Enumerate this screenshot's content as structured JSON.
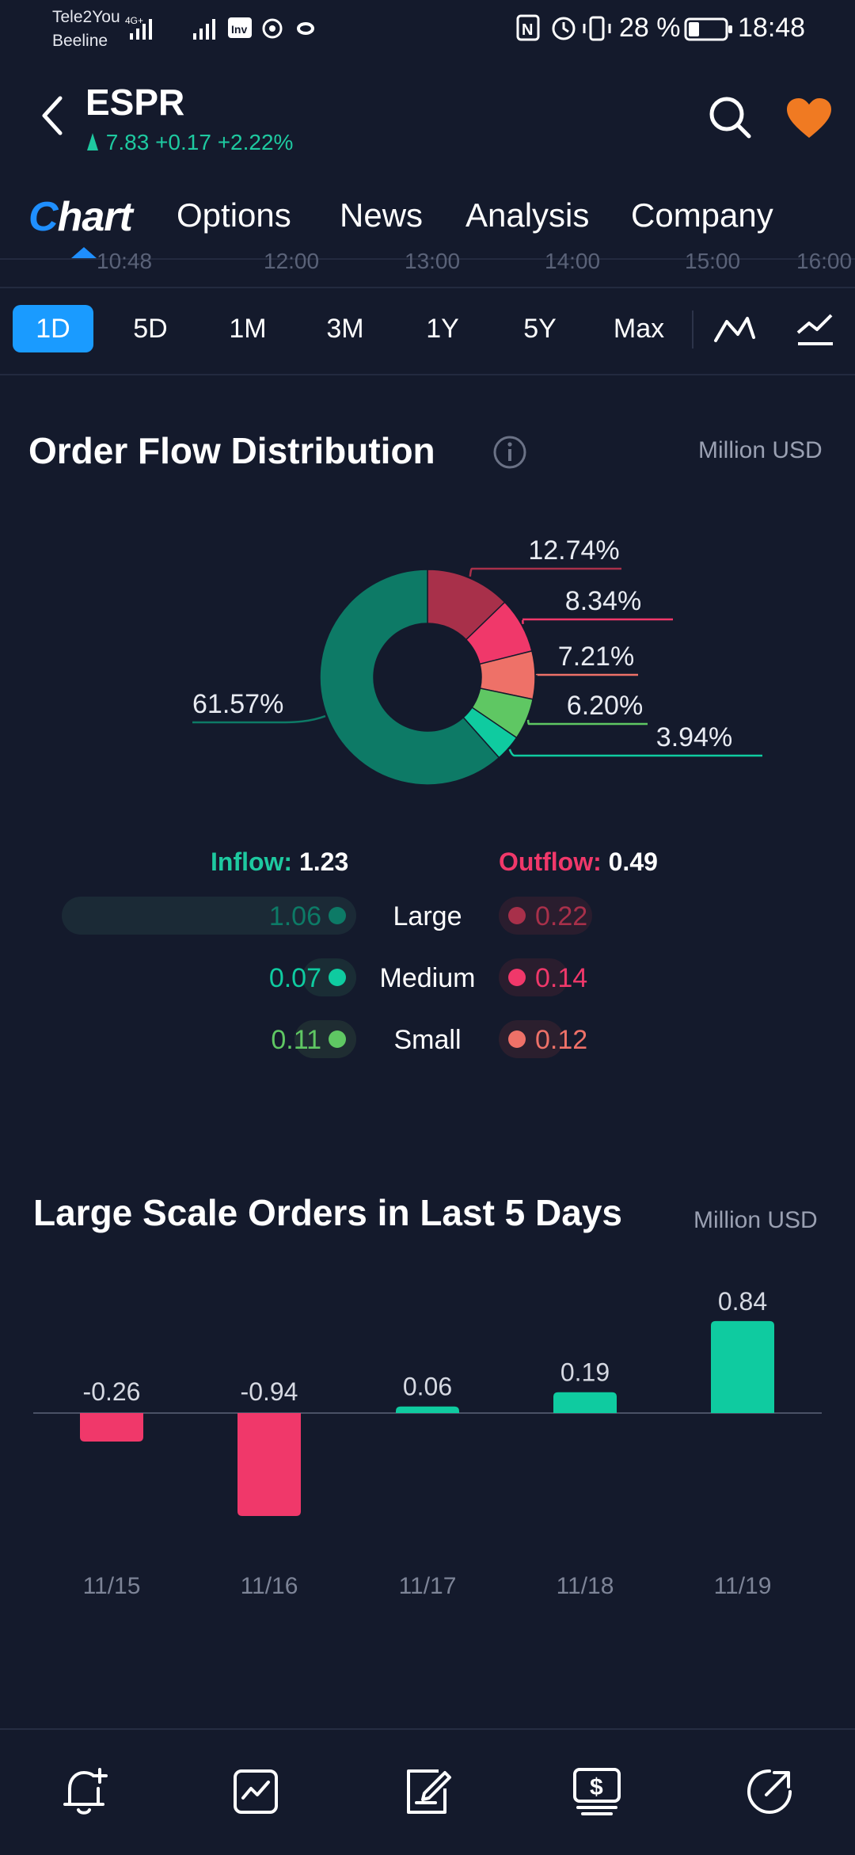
{
  "status_bar": {
    "carrier1": "Tele2You",
    "carrier2": "Beeline",
    "battery": "28 %",
    "time": "18:48"
  },
  "header": {
    "ticker": "ESPR",
    "price": "7.83",
    "change": "+0.17",
    "change_pct": "+2.22%"
  },
  "tabs": {
    "chart_c": "C",
    "chart_rest": "hart",
    "options": "Options",
    "news": "News",
    "analysis": "Analysis",
    "company": "Company"
  },
  "time_axis": [
    "10:48",
    "12:00",
    "13:00",
    "14:00",
    "15:00",
    "16:00"
  ],
  "periods": [
    "1D",
    "5D",
    "1M",
    "3M",
    "1Y",
    "5Y",
    "Max"
  ],
  "order_flow": {
    "title": "Order Flow Distribution",
    "unit": "Million USD",
    "inflow_label": "Inflow:",
    "inflow_value": "1.23",
    "outflow_label": "Outflow:",
    "outflow_value": "0.49",
    "slice_labels": [
      "61.57%",
      "12.74%",
      "8.34%",
      "7.21%",
      "6.20%",
      "3.94%"
    ],
    "rows": [
      {
        "size": "Large",
        "in": "1.06",
        "out": "0.22"
      },
      {
        "size": "Medium",
        "in": "0.07",
        "out": "0.14"
      },
      {
        "size": "Small",
        "in": "0.11",
        "out": "0.12"
      }
    ],
    "colors": {
      "inflow_large": "#0d7a66",
      "inflow_medium": "#0fcba0",
      "inflow_small": "#5fc763",
      "outflow_large": "#a8304a",
      "outflow_medium": "#f0386a",
      "outflow_small": "#ee7168"
    }
  },
  "large_orders": {
    "title": "Large Scale Orders in Last 5 Days",
    "unit": "Million USD"
  },
  "chart_data": [
    {
      "type": "pie",
      "labels": [
        "Inflow Large",
        "Outflow Large",
        "Outflow Medium",
        "Outflow Small",
        "Inflow Small",
        "Inflow Medium"
      ],
      "values": [
        61.57,
        12.74,
        8.34,
        7.21,
        6.2,
        3.94
      ],
      "colors": [
        "#0d7a66",
        "#a8304a",
        "#f0386a",
        "#ee7168",
        "#5fc763",
        "#0fcba0"
      ]
    },
    {
      "type": "bar",
      "categories": [
        "11/15",
        "11/16",
        "11/17",
        "11/18",
        "11/19"
      ],
      "values": [
        -0.26,
        -0.94,
        0.06,
        0.19,
        0.84
      ],
      "value_labels": [
        "-0.26",
        "-0.94",
        "0.06",
        "0.19",
        "0.84"
      ],
      "positive_color": "#0fcba0",
      "negative_color": "#f0386a"
    }
  ],
  "bottom_nav": [
    "alert-add-icon",
    "portfolio-chart-icon",
    "note-edit-icon",
    "trade-dollar-icon",
    "share-icon"
  ]
}
